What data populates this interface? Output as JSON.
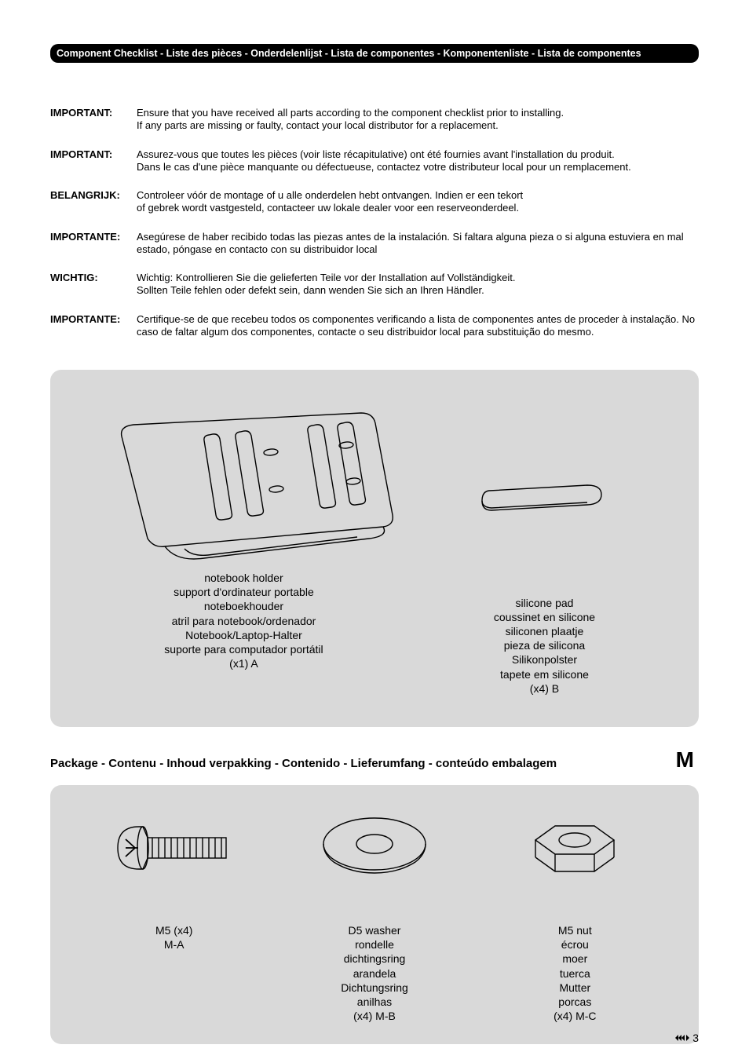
{
  "header_bar": "Component Checklist - Liste des pièces - Onderdelenlijst - Lista de componentes - Komponentenliste - Lista de componentes",
  "notices": [
    {
      "label": "IMPORTANT:",
      "text": "Ensure that you have received all parts according to the component checklist prior to installing.\nIf any parts are missing or faulty, contact your local distributor for a replacement."
    },
    {
      "label": "IMPORTANT:",
      "text": "Assurez-vous que toutes les pièces (voir liste récapitulative) ont été fournies avant l'installation du produit.\nDans le cas d'une pièce manquante ou défectueuse, contactez votre distributeur local pour un remplacement."
    },
    {
      "label": "BELANGRIJK:",
      "text": "Controleer vóór de montage of u alle onderdelen hebt ontvangen. Indien er een tekort\nof gebrek wordt vastgesteld, contacteer uw lokale dealer voor een reserveonderdeel."
    },
    {
      "label": "IMPORTANTE:",
      "text": "Asegúrese de haber recibido todas las piezas antes de la instalación. Si faltara alguna pieza o si alguna estuviera en mal estado, póngase en contacto con su distribuidor local"
    },
    {
      "label": "WICHTIG:",
      "text": "Wichtig: Kontrollieren Sie die gelieferten Teile vor der Installation auf Vollständigkeit.\nSollten Teile fehlen oder defekt sein, dann wenden Sie sich an Ihren Händler."
    },
    {
      "label": "IMPORTANTE:",
      "text": "Certifique-se de que recebeu todos os componentes verificando a lista de componentes antes de proceder à instalação. No caso de faltar algum dos componentes, contacte o seu distribuidor local para substituição do mesmo."
    }
  ],
  "panel1": {
    "item_a": "notebook holder\nsupport d'ordinateur portable\nnoteboekhouder\natril para notebook/ordenador\nNotebook/Laptop-Halter\nsuporte para computador portátil\n(x1) A",
    "item_b": "silicone pad\ncoussinet en silicone\nsiliconen plaatje\npieza de silicona\nSilikonpolster\ntapete em silicone\n(x4) B"
  },
  "section2": {
    "title": "Package - Contenu - Inhoud verpakking - Contenido - Lieferumfang - conteúdo embalagem",
    "letter": "M"
  },
  "panel2": {
    "item_ma": "M5 (x4)\nM-A",
    "item_mb": "D5 washer\nrondelle\ndichtingsring\narandela\nDichtungsring\nanilhas\n(x4) M-B",
    "item_mc": "M5 nut\nécrou\nmoer\ntuerca\nMutter\nporcas\n(x4) M-C"
  },
  "page_number": "3",
  "colors": {
    "panel_bg": "#d9d9d9",
    "stroke": "#000000"
  }
}
